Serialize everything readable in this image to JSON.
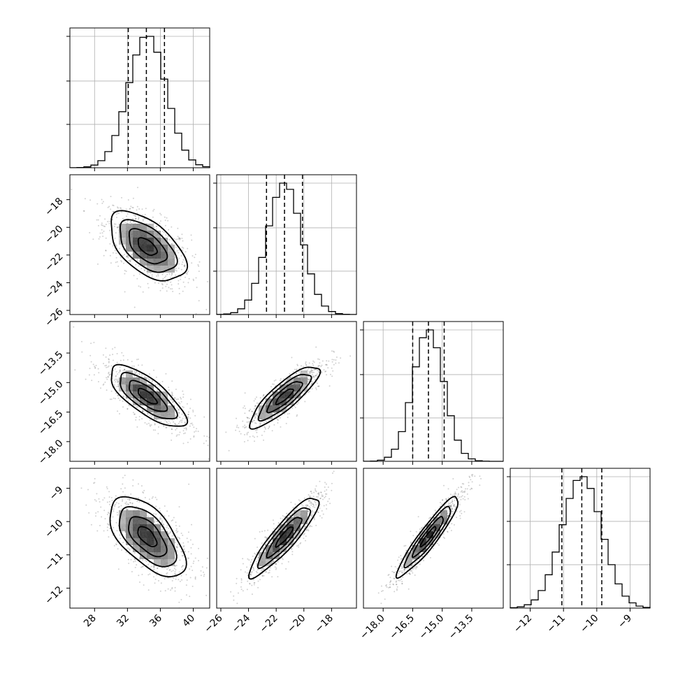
{
  "chart_data": {
    "type": "corner",
    "parameters": [
      {
        "range": [
          25,
          42
        ],
        "ticks": [
          28,
          32,
          36,
          40
        ],
        "tick_labels": [
          "28",
          "32",
          "36",
          "40"
        ],
        "mean": 34.4,
        "sigma": 2.3,
        "quantiles": [
          32.1,
          34.3,
          36.5
        ]
      },
      {
        "range": [
          -26.3,
          -16.2
        ],
        "ticks": [
          -26,
          -24,
          -22,
          -20,
          -18
        ],
        "tick_labels": [
          "−26",
          "−24",
          "−22",
          "−20",
          "−18"
        ],
        "mean": -21.4,
        "sigma": 1.25,
        "quantiles": [
          -22.7,
          -21.4,
          -20.1
        ]
      },
      {
        "range": [
          -19.0,
          -11.9
        ],
        "ticks": [
          -18.0,
          -16.5,
          -15.0,
          -13.5
        ],
        "tick_labels": [
          "−18.0",
          "−16.5",
          "−15.0",
          "−13.5"
        ],
        "mean": -15.7,
        "sigma": 0.78,
        "quantiles": [
          -16.5,
          -15.7,
          -14.9
        ]
      },
      {
        "range": [
          -12.6,
          -8.4
        ],
        "ticks": [
          -12,
          -11,
          -10,
          -9
        ],
        "tick_labels": [
          "−12",
          "−11",
          "−10",
          "−9"
        ],
        "mean": -10.45,
        "sigma": 0.6,
        "quantiles": [
          -11.05,
          -10.45,
          -9.85
        ]
      }
    ],
    "correlations": {
      "1-0": -0.55,
      "2-0": -0.75,
      "2-1": 0.85,
      "3-0": -0.6,
      "3-1": 0.9,
      "3-2": 0.93
    },
    "contour_levels_sigma": [
      0.5,
      1.0,
      1.5,
      2.0
    ],
    "histogram_bins": 20,
    "grid": true,
    "colors": {
      "ink": "#000000",
      "grid": "#b0b0b0",
      "background": "#ffffff"
    }
  }
}
